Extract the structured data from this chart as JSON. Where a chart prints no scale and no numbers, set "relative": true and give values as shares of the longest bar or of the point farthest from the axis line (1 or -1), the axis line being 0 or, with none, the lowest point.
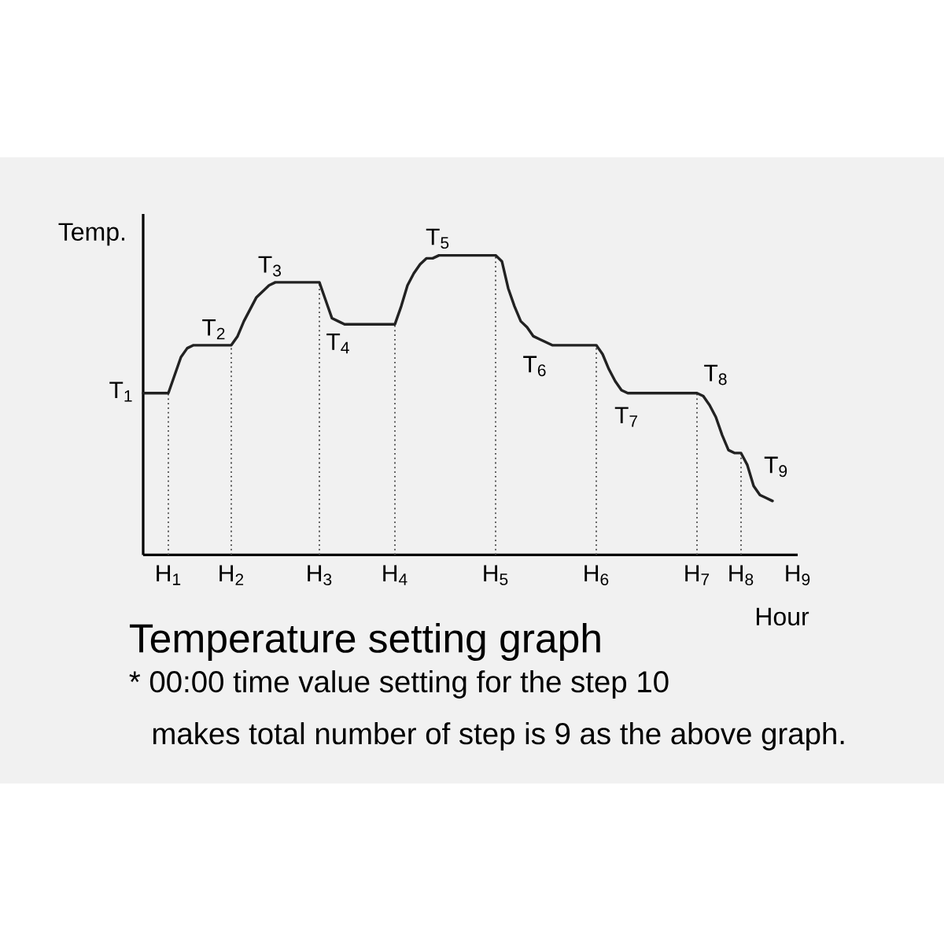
{
  "chart_data": {
    "type": "line",
    "title": "Temperature setting graph",
    "xlabel": "Hour",
    "ylabel": "Temp.",
    "relative": true,
    "categories": [
      null,
      null,
      null,
      null,
      "H$_{1}$",
      null,
      null,
      null,
      null,
      null,
      null,
      null,
      null,
      null,
      "H$_{2}$",
      null,
      null,
      null,
      null,
      null,
      null,
      null,
      null,
      null,
      null,
      null,
      null,
      null,
      "H$_{3}$",
      null,
      null,
      null,
      null,
      null,
      null,
      null,
      null,
      null,
      null,
      null,
      "H$_{4}$",
      null,
      null,
      null,
      null,
      null,
      null,
      null,
      null,
      null,
      null,
      null,
      null,
      null,
      null,
      null,
      "H$_{5}$",
      null,
      null,
      null,
      null,
      null,
      null,
      null,
      null,
      null,
      null,
      null,
      null,
      null,
      null,
      null,
      "H$_{6}$",
      null,
      null,
      null,
      null,
      null,
      null,
      null,
      null,
      null,
      null,
      null,
      null,
      null,
      null,
      null,
      "H$_{7}$",
      null,
      null,
      null,
      null,
      null,
      null,
      "H$_{8}$",
      null,
      null,
      null,
      null,
      null,
      null,
      null,
      null,
      "H$_{9}$"
    ],
    "values": [
      0.54,
      0.54,
      0.54,
      0.54,
      0.54,
      0.6,
      0.66,
      0.69,
      0.7,
      0.7,
      0.7,
      0.7,
      0.7,
      0.7,
      0.7,
      0.73,
      0.78,
      0.82,
      0.86,
      0.88,
      0.9,
      0.91,
      0.91,
      0.91,
      0.91,
      0.91,
      0.91,
      0.91,
      0.91,
      0.85,
      0.79,
      0.78,
      0.77,
      0.77,
      0.77,
      0.77,
      0.77,
      0.77,
      0.77,
      0.77,
      0.77,
      0.83,
      0.9,
      0.94,
      0.97,
      0.99,
      0.99,
      1,
      1,
      1,
      1,
      1,
      1,
      1,
      1,
      1,
      1,
      0.98,
      0.89,
      0.83,
      0.78,
      0.76,
      0.73,
      0.72,
      0.71,
      0.7,
      0.7,
      0.7,
      0.7,
      0.7,
      0.7,
      0.7,
      0.7,
      0.67,
      0.62,
      0.58,
      0.55,
      0.54,
      0.54,
      0.54,
      0.54,
      0.54,
      0.54,
      0.54,
      0.54,
      0.54,
      0.54,
      0.54,
      0.54,
      0.53,
      0.5,
      0.46,
      0.4,
      0.35,
      0.34,
      0.34,
      0.3,
      0.23,
      0.2,
      0.19,
      0.18,
      null,
      null,
      null,
      null
    ],
    "color": "#222222",
    "ref_lines": [
      {
        "axis": "x",
        "value": "H$_{1}$",
        "color": "#444444",
        "line_style": "dotted"
      },
      {
        "axis": "x",
        "value": "H$_{2}$",
        "color": "#444444",
        "line_style": "dotted"
      },
      {
        "axis": "x",
        "value": "H$_{3}$",
        "color": "#444444",
        "line_style": "dotted"
      },
      {
        "axis": "x",
        "value": "H$_{4}$",
        "color": "#444444",
        "line_style": "dotted"
      },
      {
        "axis": "x",
        "value": "H$_{5}$",
        "color": "#444444",
        "line_style": "dotted"
      },
      {
        "axis": "x",
        "value": "H$_{6}$",
        "color": "#444444",
        "line_style": "dotted"
      },
      {
        "axis": "x",
        "value": "H$_{7}$",
        "color": "#444444",
        "line_style": "dotted"
      },
      {
        "axis": "x",
        "value": "H$_{8}$",
        "color": "#444444",
        "line_style": "dotted"
      }
    ],
    "annotations": [
      "T$_{1}$",
      "T$_{2}$",
      "T$_{3}$",
      "T$_{4}$",
      "T$_{5}$",
      "T$_{6}$",
      "T$_{7}$",
      "T$_{8}$",
      "T$_{9}$",
      "* 00:00 time value setting for the step 10",
      "makes total number of step is 9 as the above graph."
    ]
  }
}
